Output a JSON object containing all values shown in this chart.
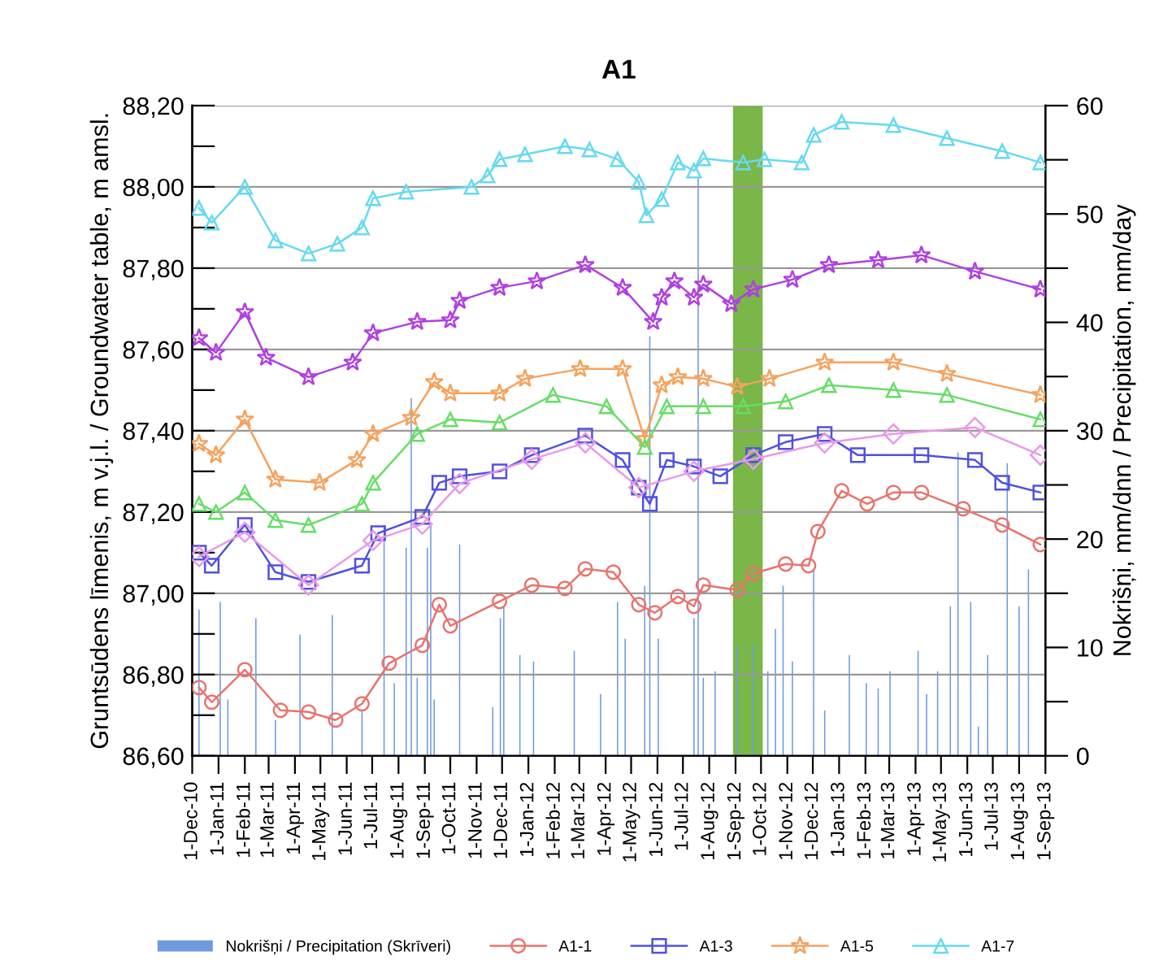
{
  "chart_data": {
    "type": "line",
    "title": "A1",
    "ylabel": "Gruntsūdens līmenis, m v.j.l. / Groundwater table, m amsl.",
    "y2label": "Nokrišņi, mm/dnn / Precipitation, mm/day",
    "xlim": [
      "2010-12-01",
      "2013-09-01"
    ],
    "xticks": [
      {
        "value": "2010-12-01",
        "label": "1-Dec-10"
      },
      {
        "value": "2011-01-01",
        "label": "1-Jan-11"
      },
      {
        "value": "2011-02-01",
        "label": "1-Feb-11"
      },
      {
        "value": "2011-03-01",
        "label": "1-Mar-11"
      },
      {
        "value": "2011-04-01",
        "label": "1-Apr-11"
      },
      {
        "value": "2011-05-01",
        "label": "1-May-11"
      },
      {
        "value": "2011-06-01",
        "label": "1-Jun-11"
      },
      {
        "value": "2011-07-01",
        "label": "1-Jul-11"
      },
      {
        "value": "2011-08-01",
        "label": "1-Aug-11"
      },
      {
        "value": "2011-09-01",
        "label": "1-Sep-11"
      },
      {
        "value": "2011-10-01",
        "label": "1-Oct-11"
      },
      {
        "value": "2011-11-01",
        "label": "1-Nov-11"
      },
      {
        "value": "2011-12-01",
        "label": "1-Dec-11"
      },
      {
        "value": "2012-01-01",
        "label": "1-Jan-12"
      },
      {
        "value": "2012-02-01",
        "label": "1-Feb-12"
      },
      {
        "value": "2012-03-01",
        "label": "1-Mar-12"
      },
      {
        "value": "2012-04-01",
        "label": "1-Apr-12"
      },
      {
        "value": "2012-05-01",
        "label": "1-May-12"
      },
      {
        "value": "2012-06-01",
        "label": "1-Jun-12"
      },
      {
        "value": "2012-07-01",
        "label": "1-Jul-12"
      },
      {
        "value": "2012-08-01",
        "label": "1-Aug-12"
      },
      {
        "value": "2012-09-01",
        "label": "1-Sep-12"
      },
      {
        "value": "2012-10-01",
        "label": "1-Oct-12"
      },
      {
        "value": "2012-11-01",
        "label": "1-Nov-12"
      },
      {
        "value": "2012-12-01",
        "label": "1-Dec-12"
      },
      {
        "value": "2013-01-01",
        "label": "1-Jan-13"
      },
      {
        "value": "2013-02-01",
        "label": "1-Feb-13"
      },
      {
        "value": "2013-03-01",
        "label": "1-Mar-13"
      },
      {
        "value": "2013-04-01",
        "label": "1-Apr-13"
      },
      {
        "value": "2013-05-01",
        "label": "1-May-13"
      },
      {
        "value": "2013-06-01",
        "label": "1-Jun-13"
      },
      {
        "value": "2013-07-01",
        "label": "1-Jul-13"
      },
      {
        "value": "2013-08-01",
        "label": "1-Aug-13"
      },
      {
        "value": "2013-09-01",
        "label": "1-Sep-13"
      }
    ],
    "ylim": [
      86.6,
      88.2
    ],
    "yticks": [
      {
        "value": 86.6,
        "label": "86,60"
      },
      {
        "value": 86.7,
        "label": null
      },
      {
        "value": 86.8,
        "label": "86,80"
      },
      {
        "value": 86.9,
        "label": null
      },
      {
        "value": 87.0,
        "label": "87,00"
      },
      {
        "value": 87.1,
        "label": null
      },
      {
        "value": 87.2,
        "label": "87,20"
      },
      {
        "value": 87.3,
        "label": null
      },
      {
        "value": 87.4,
        "label": "87,40"
      },
      {
        "value": 87.5,
        "label": null
      },
      {
        "value": 87.6,
        "label": "87,60"
      },
      {
        "value": 87.7,
        "label": null
      },
      {
        "value": 87.8,
        "label": "87,80"
      },
      {
        "value": 87.9,
        "label": null
      },
      {
        "value": 88.0,
        "label": "88,00"
      },
      {
        "value": 88.1,
        "label": null
      },
      {
        "value": 88.2,
        "label": "88,20"
      }
    ],
    "y2lim": [
      0,
      60
    ],
    "y2ticks": [
      0,
      {
        "value": 5,
        "label": null
      },
      10,
      {
        "value": 15,
        "label": null
      },
      20,
      {
        "value": 25,
        "label": null
      },
      30,
      {
        "value": 35,
        "label": null
      },
      40,
      {
        "value": 45,
        "label": null
      },
      50,
      {
        "value": 55,
        "label": null
      },
      60
    ],
    "grid": "y",
    "legend": "bottom",
    "bands": [
      {
        "axis": "x",
        "from": "2012-08-29",
        "to": "2012-10-03",
        "color": "#7ab648"
      }
    ],
    "series": [
      {
        "type": "bar",
        "axis": "y2",
        "name": "Nokrišņi / Precipitation (Skrīveri)",
        "color": "#6f9ae0",
        "x": [
          "2010-12-09",
          "2011-01-03",
          "2011-01-12",
          "2011-02-14",
          "2011-03-09",
          "2011-04-07",
          "2011-05-15",
          "2011-06-19",
          "2011-07-15",
          "2011-07-27",
          "2011-08-10",
          "2011-08-16",
          "2011-08-23",
          "2011-09-04",
          "2011-09-08",
          "2011-09-12",
          "2011-10-12",
          "2011-11-20",
          "2011-11-29",
          "2011-12-03",
          "2011-12-22",
          "2012-01-07",
          "2012-02-24",
          "2012-03-26",
          "2012-04-15",
          "2012-04-24",
          "2012-05-17",
          "2012-05-23",
          "2012-06-02",
          "2012-07-14",
          "2012-07-19",
          "2012-07-25",
          "2012-08-08",
          "2012-09-03",
          "2012-09-22",
          "2012-10-09",
          "2012-10-18",
          "2012-10-27",
          "2012-11-07",
          "2012-12-02",
          "2012-12-15",
          "2013-01-13",
          "2013-02-02",
          "2013-02-16",
          "2013-03-02",
          "2013-04-04",
          "2013-04-14",
          "2013-04-27",
          "2013-05-12",
          "2013-05-21",
          "2013-06-05",
          "2013-06-14",
          "2013-06-25",
          "2013-07-18",
          "2013-08-01",
          "2013-08-12"
        ],
        "values": [
          13.5,
          14.2,
          5.2,
          12.7,
          3.3,
          11.2,
          13,
          4.2,
          21.3,
          6.7,
          19.2,
          33,
          7.2,
          19.2,
          21.4,
          5.2,
          19.5,
          4.5,
          12.7,
          13.8,
          9.3,
          8.7,
          9.7,
          5.7,
          14.2,
          10.8,
          15.7,
          38.7,
          10.8,
          12.7,
          53.3,
          7.2,
          7.8,
          10.2,
          10.2,
          7.8,
          11.7,
          15.7,
          8.7,
          17.2,
          4.2,
          9.3,
          6.7,
          6.2,
          7.8,
          9.7,
          5.7,
          7.8,
          13.8,
          28,
          14.2,
          2.7,
          9.3,
          27,
          13.8,
          17.2
        ]
      },
      {
        "name": "A1-1",
        "color": "#e8736c",
        "marker": "circle",
        "x": [
          "2010-12-09",
          "2010-12-24",
          "2011-02-01",
          "2011-03-15",
          "2011-04-17",
          "2011-05-19",
          "2011-06-19",
          "2011-07-21",
          "2011-08-29",
          "2011-09-18",
          "2011-10-01",
          "2011-11-28",
          "2012-01-05",
          "2012-02-13",
          "2012-03-08",
          "2012-04-10",
          "2012-05-10",
          "2012-05-29",
          "2012-06-25",
          "2012-07-14",
          "2012-07-25",
          "2012-09-03",
          "2012-09-22",
          "2012-10-30",
          "2012-11-26",
          "2012-12-07",
          "2013-01-04",
          "2013-02-03",
          "2013-03-06",
          "2013-04-08",
          "2013-05-27",
          "2013-07-12",
          "2013-08-26"
        ],
        "values": [
          86.768,
          86.732,
          86.812,
          86.712,
          86.708,
          86.688,
          86.728,
          86.828,
          86.872,
          86.972,
          86.92,
          86.98,
          87.02,
          87.012,
          87.06,
          87.052,
          86.972,
          86.952,
          86.992,
          86.968,
          87.02,
          87.008,
          87.048,
          87.072,
          87.068,
          87.152,
          87.252,
          87.22,
          87.248,
          87.248,
          87.208,
          87.168,
          87.12
        ]
      },
      {
        "name": "A1-3",
        "color": "#5050e0",
        "marker": "square",
        "x": [
          "2010-12-09",
          "2010-12-24",
          "2011-02-01",
          "2011-03-09",
          "2011-04-17",
          "2011-06-19",
          "2011-07-08",
          "2011-08-29",
          "2011-09-18",
          "2011-10-12",
          "2011-11-28",
          "2012-01-05",
          "2012-03-08",
          "2012-04-21",
          "2012-05-10",
          "2012-05-23",
          "2012-06-12",
          "2012-07-14",
          "2012-08-14",
          "2012-09-22",
          "2012-10-30",
          "2012-12-15",
          "2013-01-23",
          "2013-04-08",
          "2013-06-10",
          "2013-07-12",
          "2013-08-26"
        ],
        "values": [
          87.1,
          87.068,
          87.168,
          87.052,
          87.028,
          87.068,
          87.148,
          87.188,
          87.272,
          87.288,
          87.3,
          87.34,
          87.388,
          87.328,
          87.26,
          87.22,
          87.328,
          87.312,
          87.288,
          87.34,
          87.372,
          87.392,
          87.34,
          87.34,
          87.328,
          87.272,
          87.248
        ]
      },
      {
        "name": "A1-5",
        "color": "#f5a25d",
        "marker": "star",
        "x": [
          "2010-12-09",
          "2010-12-29",
          "2011-02-01",
          "2011-03-09",
          "2011-04-30",
          "2011-06-13",
          "2011-07-02",
          "2011-08-16",
          "2011-09-12",
          "2011-10-01",
          "2011-11-28",
          "2011-12-28",
          "2012-03-02",
          "2012-04-21",
          "2012-05-17",
          "2012-06-06",
          "2012-06-25",
          "2012-07-25",
          "2012-09-03",
          "2012-10-11",
          "2012-12-15",
          "2013-03-06",
          "2013-05-08",
          "2013-08-26"
        ],
        "values": [
          87.368,
          87.34,
          87.428,
          87.28,
          87.272,
          87.328,
          87.392,
          87.432,
          87.52,
          87.492,
          87.492,
          87.528,
          87.552,
          87.552,
          87.38,
          87.512,
          87.532,
          87.528,
          87.508,
          87.528,
          87.568,
          87.568,
          87.54,
          87.488
        ]
      },
      {
        "name": "A1-7",
        "color": "#66d9ef",
        "marker": "triangle",
        "x": [
          "2010-12-09",
          "2010-12-24",
          "2011-02-01",
          "2011-03-09",
          "2011-04-17",
          "2011-05-21",
          "2011-06-19",
          "2011-07-02",
          "2011-08-10",
          "2011-10-26",
          "2011-11-14",
          "2011-11-28",
          "2011-12-28",
          "2012-02-13",
          "2012-03-13",
          "2012-04-15",
          "2012-05-10",
          "2012-05-19",
          "2012-06-06",
          "2012-06-25",
          "2012-07-14",
          "2012-07-25",
          "2012-09-10",
          "2012-10-05",
          "2012-11-18",
          "2012-12-02",
          "2013-01-04",
          "2013-03-06",
          "2013-05-08",
          "2013-07-12",
          "2013-08-26"
        ],
        "values": [
          87.948,
          87.912,
          88.0,
          87.868,
          87.836,
          87.86,
          87.9,
          87.972,
          87.988,
          88.0,
          88.028,
          88.068,
          88.08,
          88.1,
          88.092,
          88.068,
          88.012,
          87.93,
          87.97,
          88.06,
          88.04,
          88.07,
          88.06,
          88.068,
          88.06,
          88.128,
          88.16,
          88.152,
          88.12,
          88.088,
          88.06
        ]
      },
      {
        "color": "#b040e0",
        "marker": "star",
        "x": [
          "2010-12-09",
          "2010-12-29",
          "2011-02-01",
          "2011-02-26",
          "2011-04-17",
          "2011-06-08",
          "2011-07-02",
          "2011-08-23",
          "2011-10-01",
          "2011-10-12",
          "2011-11-28",
          "2012-01-11",
          "2012-03-08",
          "2012-04-21",
          "2012-05-27",
          "2012-06-06",
          "2012-06-21",
          "2012-07-14",
          "2012-07-25",
          "2012-08-27",
          "2012-09-22",
          "2012-11-07",
          "2012-12-20",
          "2013-02-16",
          "2013-04-08",
          "2013-06-10",
          "2013-08-26"
        ],
        "values": [
          87.628,
          87.592,
          87.692,
          87.58,
          87.532,
          87.568,
          87.64,
          87.668,
          87.672,
          87.72,
          87.752,
          87.768,
          87.808,
          87.752,
          87.668,
          87.728,
          87.768,
          87.728,
          87.76,
          87.712,
          87.748,
          87.772,
          87.808,
          87.82,
          87.832,
          87.792,
          87.748
        ]
      },
      {
        "color": "#66dd66",
        "marker": "triangle",
        "x": [
          "2010-12-09",
          "2010-12-29",
          "2011-02-01",
          "2011-03-09",
          "2011-04-17",
          "2011-06-19",
          "2011-07-02",
          "2011-08-23",
          "2011-10-01",
          "2011-11-28",
          "2012-01-30",
          "2012-04-02",
          "2012-05-17",
          "2012-06-12",
          "2012-07-25",
          "2012-09-10",
          "2012-10-30",
          "2012-12-20",
          "2013-03-06",
          "2013-05-08",
          "2013-08-26"
        ],
        "values": [
          87.22,
          87.2,
          87.248,
          87.18,
          87.168,
          87.22,
          87.272,
          87.392,
          87.428,
          87.42,
          87.488,
          87.46,
          87.36,
          87.46,
          87.46,
          87.46,
          87.472,
          87.512,
          87.5,
          87.488,
          87.428
        ]
      },
      {
        "color": "#e899e8",
        "marker": "diamond",
        "x": [
          "2010-12-09",
          "2011-02-01",
          "2011-04-17",
          "2011-07-02",
          "2011-08-29",
          "2011-10-12",
          "2012-01-05",
          "2012-03-08",
          "2012-05-10",
          "2012-07-14",
          "2012-09-22",
          "2012-12-15",
          "2013-03-06",
          "2013-06-10",
          "2013-08-26"
        ],
        "values": [
          87.09,
          87.15,
          87.02,
          87.13,
          87.17,
          87.27,
          87.33,
          87.37,
          87.26,
          87.3,
          87.33,
          87.37,
          87.392,
          87.408,
          87.34
        ]
      }
    ]
  }
}
